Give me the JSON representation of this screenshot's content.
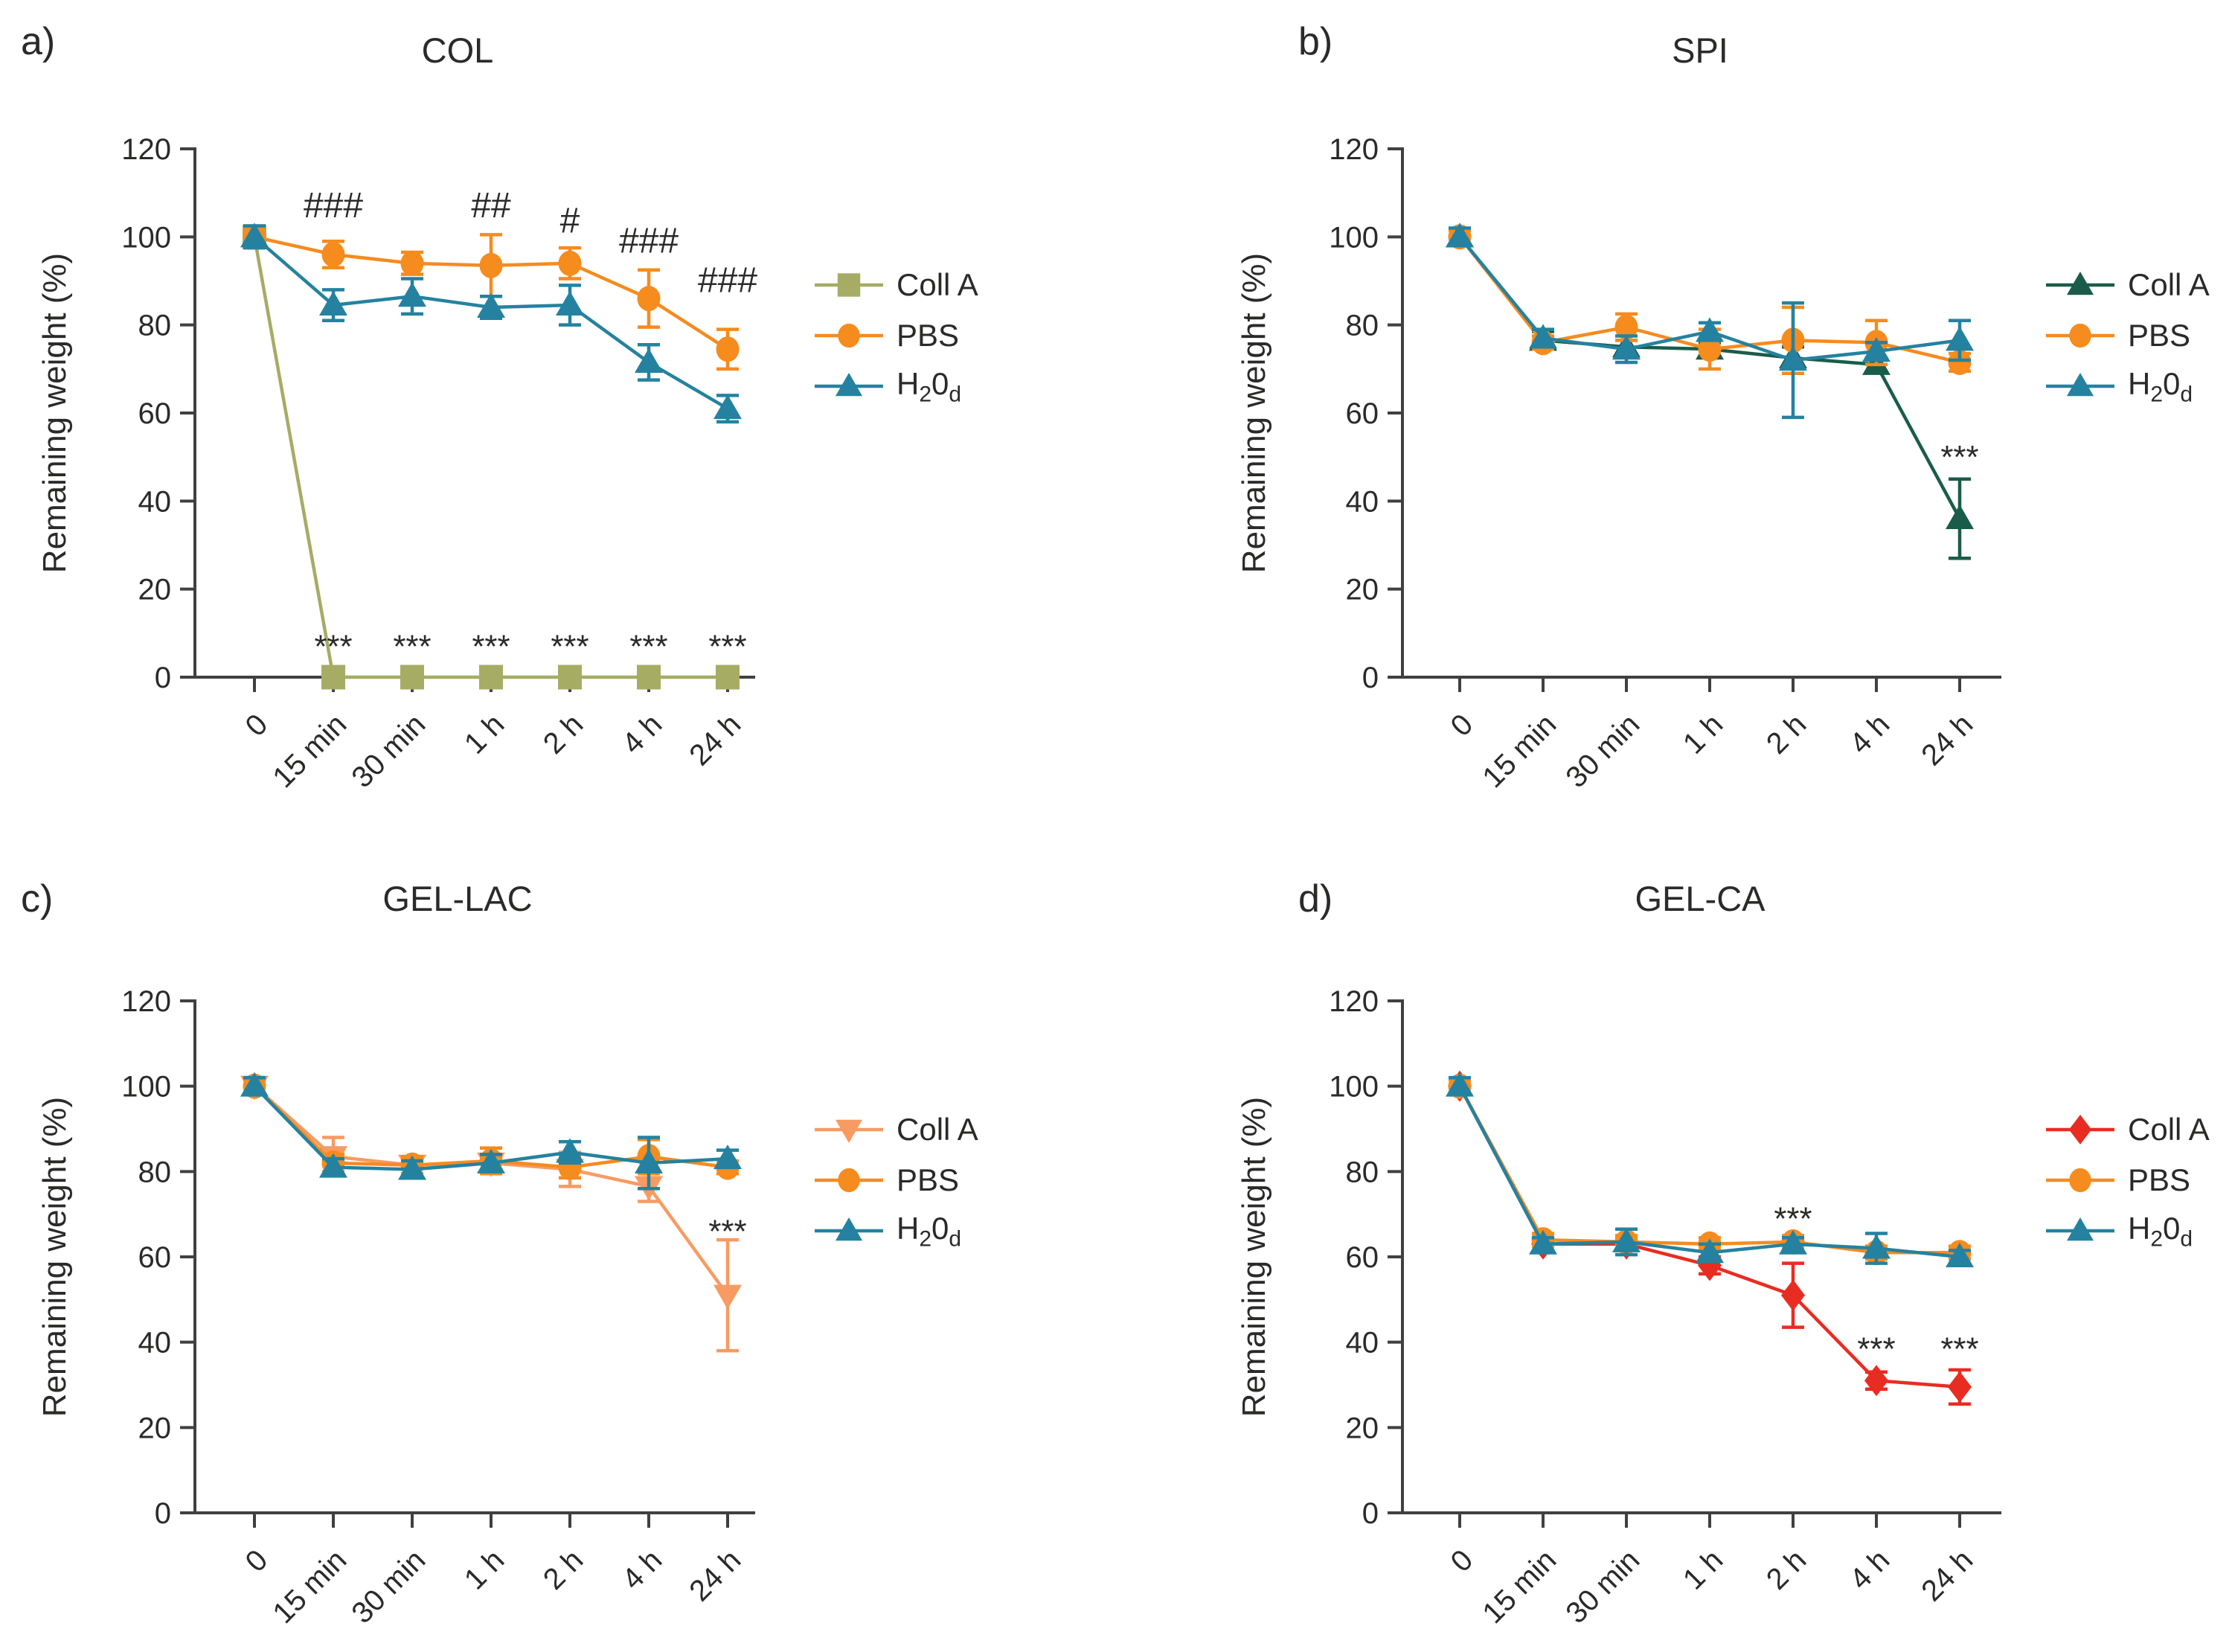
{
  "chart_data": [
    {
      "type": "line",
      "panel_letter": "a)",
      "title": "COL",
      "xlabel": "",
      "ylabel": "Remaining weight (%)",
      "categories": [
        "0",
        "15 min",
        "30 min",
        "1 h",
        "2 h",
        "4 h",
        "24 h"
      ],
      "ylim": [
        0,
        120
      ],
      "yticks": [
        0,
        20,
        40,
        60,
        80,
        100,
        120
      ],
      "grid": false,
      "legend_position": "right",
      "series": [
        {
          "name": "Coll A",
          "marker": "square",
          "color": "#A6AC64",
          "values": [
            100,
            0,
            0,
            0,
            0,
            0,
            0
          ],
          "errors": [
            2,
            0,
            0,
            0,
            0,
            0,
            0
          ]
        },
        {
          "name": "PBS",
          "marker": "circle",
          "color": "#F68B1E",
          "values": [
            100,
            96,
            94,
            93.5,
            94,
            86,
            74.5
          ],
          "errors": [
            2,
            3,
            2.5,
            7,
            3.5,
            6.5,
            4.5
          ]
        },
        {
          "name": "H20d",
          "name_parts": [
            "H",
            "2",
            "0",
            "d"
          ],
          "marker": "triangle-up",
          "color": "#2482A0",
          "values": [
            100,
            84.5,
            86.5,
            84,
            84.5,
            71.5,
            61
          ],
          "errors": [
            2.5,
            3.5,
            4,
            2.5,
            4.5,
            4,
            3
          ]
        }
      ],
      "annotations": [
        {
          "text": "###",
          "x": "15 min",
          "y": 107
        },
        {
          "text": "##",
          "x": "1 h",
          "y": 107
        },
        {
          "text": "#",
          "x": "2 h",
          "y": 103.5
        },
        {
          "text": "###",
          "x": "4 h",
          "y": 99
        },
        {
          "text": "###",
          "x": "24 h",
          "y": 90
        },
        {
          "text": "***",
          "x": "15 min",
          "y": 7
        },
        {
          "text": "***",
          "x": "30 min",
          "y": 7
        },
        {
          "text": "***",
          "x": "1 h",
          "y": 7
        },
        {
          "text": "***",
          "x": "2 h",
          "y": 7
        },
        {
          "text": "***",
          "x": "4 h",
          "y": 7
        },
        {
          "text": "***",
          "x": "24 h",
          "y": 7
        }
      ]
    },
    {
      "type": "line",
      "panel_letter": "b)",
      "title": "SPI",
      "xlabel": "",
      "ylabel": "Remaining weight (%)",
      "categories": [
        "0",
        "15 min",
        "30 min",
        "1 h",
        "2 h",
        "4 h",
        "24 h"
      ],
      "ylim": [
        0,
        120
      ],
      "yticks": [
        0,
        20,
        40,
        60,
        80,
        100,
        120
      ],
      "grid": false,
      "legend_position": "right",
      "series": [
        {
          "name": "Coll A",
          "marker": "triangle-up",
          "color": "#1A5C4A",
          "values": [
            100,
            76.5,
            75,
            74.5,
            72.5,
            71,
            36
          ],
          "errors": [
            1.5,
            2,
            1.5,
            1.5,
            2.5,
            1.5,
            9
          ]
        },
        {
          "name": "PBS",
          "marker": "circle",
          "color": "#F68B1E",
          "values": [
            100,
            76,
            79.5,
            74.5,
            76.5,
            76,
            71.5
          ],
          "errors": [
            1.5,
            1.5,
            3,
            4.5,
            7.5,
            5,
            2
          ]
        },
        {
          "name": "H20d",
          "name_parts": [
            "H",
            "2",
            "0",
            "d"
          ],
          "marker": "triangle-up",
          "color": "#2482A0",
          "values": [
            100,
            77,
            74.5,
            78.5,
            72,
            74,
            76.5
          ],
          "errors": [
            2,
            2,
            3,
            2,
            13,
            2,
            4.5
          ]
        }
      ],
      "annotations": [
        {
          "text": "***",
          "x": "24 h",
          "y": 50
        }
      ]
    },
    {
      "type": "line",
      "panel_letter": "c)",
      "title": "GEL-LAC",
      "xlabel": "",
      "ylabel": "Remaining weight (%)",
      "categories": [
        "0",
        "15 min",
        "30 min",
        "1 h",
        "2 h",
        "4 h",
        "24 h"
      ],
      "ylim": [
        0,
        120
      ],
      "yticks": [
        0,
        20,
        40,
        60,
        80,
        100,
        120
      ],
      "grid": false,
      "legend_position": "right",
      "series": [
        {
          "name": "Coll A",
          "marker": "triangle-down",
          "color": "#F89B62",
          "values": [
            100,
            83.5,
            81.5,
            82,
            80.5,
            76.5,
            51
          ],
          "errors": [
            1.5,
            4.5,
            2,
            2,
            4,
            3.5,
            13
          ]
        },
        {
          "name": "PBS",
          "marker": "circle",
          "color": "#F68B1E",
          "values": [
            100,
            82,
            81.5,
            82.5,
            81,
            83.5,
            81
          ],
          "errors": [
            1.5,
            2,
            2,
            3,
            2.5,
            4,
            1.5
          ]
        },
        {
          "name": "H20d",
          "name_parts": [
            "H",
            "2",
            "0",
            "d"
          ],
          "marker": "triangle-up",
          "color": "#2482A0",
          "values": [
            100,
            81,
            80.5,
            82,
            84.5,
            82,
            83
          ],
          "errors": [
            2,
            2,
            2,
            2,
            2.5,
            6,
            2
          ]
        }
      ],
      "annotations": [
        {
          "text": "***",
          "x": "24 h",
          "y": 66
        }
      ]
    },
    {
      "type": "line",
      "panel_letter": "d)",
      "title": "GEL-CA",
      "xlabel": "",
      "ylabel": "Remaining weight (%)",
      "categories": [
        "0",
        "15 min",
        "30 min",
        "1 h",
        "2 h",
        "4 h",
        "24 h"
      ],
      "ylim": [
        0,
        120
      ],
      "yticks": [
        0,
        20,
        40,
        60,
        80,
        100,
        120
      ],
      "grid": false,
      "legend_position": "right",
      "series": [
        {
          "name": "Coll A",
          "marker": "diamond",
          "color": "#E92C22",
          "values": [
            100,
            63,
            63,
            58,
            51,
            31,
            29.5
          ],
          "errors": [
            2,
            1.5,
            1.5,
            2,
            7.5,
            2,
            4
          ]
        },
        {
          "name": "PBS",
          "marker": "circle",
          "color": "#F68B1E",
          "values": [
            100,
            64,
            63.5,
            63,
            63.5,
            61,
            61
          ],
          "errors": [
            1.5,
            1.5,
            1.5,
            1.5,
            1.5,
            1.5,
            1.5
          ]
        },
        {
          "name": "H20d",
          "name_parts": [
            "H",
            "2",
            "0",
            "d"
          ],
          "marker": "triangle-up",
          "color": "#2482A0",
          "values": [
            100,
            63,
            63.5,
            61,
            63,
            62,
            60
          ],
          "errors": [
            2,
            1.5,
            3,
            2,
            1.5,
            3.5,
            1.5
          ]
        }
      ],
      "annotations": [
        {
          "text": "***",
          "x": "2 h",
          "y": 69
        },
        {
          "text": "***",
          "x": "4 h",
          "y": 38.5
        },
        {
          "text": "***",
          "x": "24 h",
          "y": 38.5
        }
      ]
    }
  ]
}
